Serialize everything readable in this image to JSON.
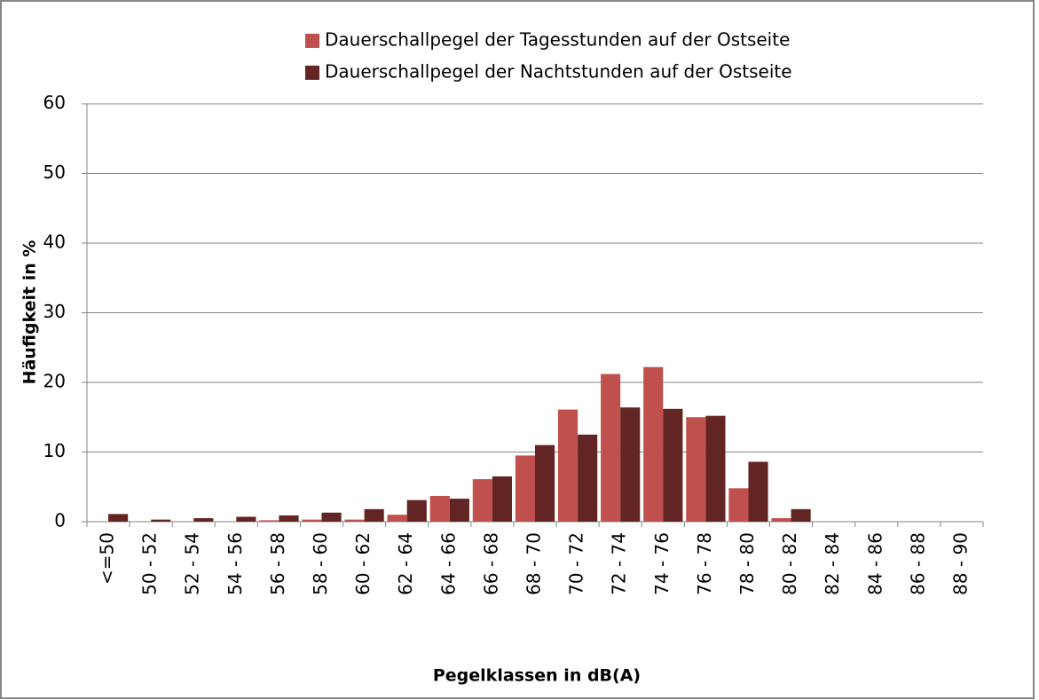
{
  "chart_data": {
    "type": "bar",
    "categories": [
      "<=50",
      "50 - 52",
      "52 - 54",
      "54 - 56",
      "56 - 58",
      "58 - 60",
      "60 - 62",
      "62 - 64",
      "64 - 66",
      "66 - 68",
      "68 - 70",
      "70 - 72",
      "72 - 74",
      "74 - 76",
      "76 - 78",
      "78 - 80",
      "80 - 82",
      "82 - 84",
      "84 - 86",
      "86 - 88",
      "88 - 90"
    ],
    "series": [
      {
        "name": "Dauerschallpegel der Tagesstunden auf der Ostseite",
        "color": "#c0504d",
        "values": [
          0,
          0,
          0,
          0,
          0.2,
          0.3,
          0.3,
          1.0,
          3.7,
          6.1,
          9.5,
          16.1,
          21.2,
          22.2,
          15.0,
          4.8,
          0.5,
          0,
          0,
          0,
          0
        ]
      },
      {
        "name": "Dauerschallpegel der Nachtstunden auf der Ostseite",
        "color": "#632523",
        "values": [
          1.1,
          0.3,
          0.5,
          0.7,
          0.9,
          1.3,
          1.8,
          3.1,
          3.3,
          6.5,
          11.0,
          12.5,
          16.4,
          16.2,
          15.2,
          8.6,
          1.8,
          0,
          0,
          0,
          0
        ]
      }
    ],
    "xlabel": "Pegelklassen in dB(A)",
    "ylabel": "Häufigkeit in %",
    "ylim": [
      0,
      60
    ],
    "yticks": [
      0,
      10,
      20,
      30,
      40,
      50,
      60
    ],
    "grid": true,
    "legend": "top"
  }
}
